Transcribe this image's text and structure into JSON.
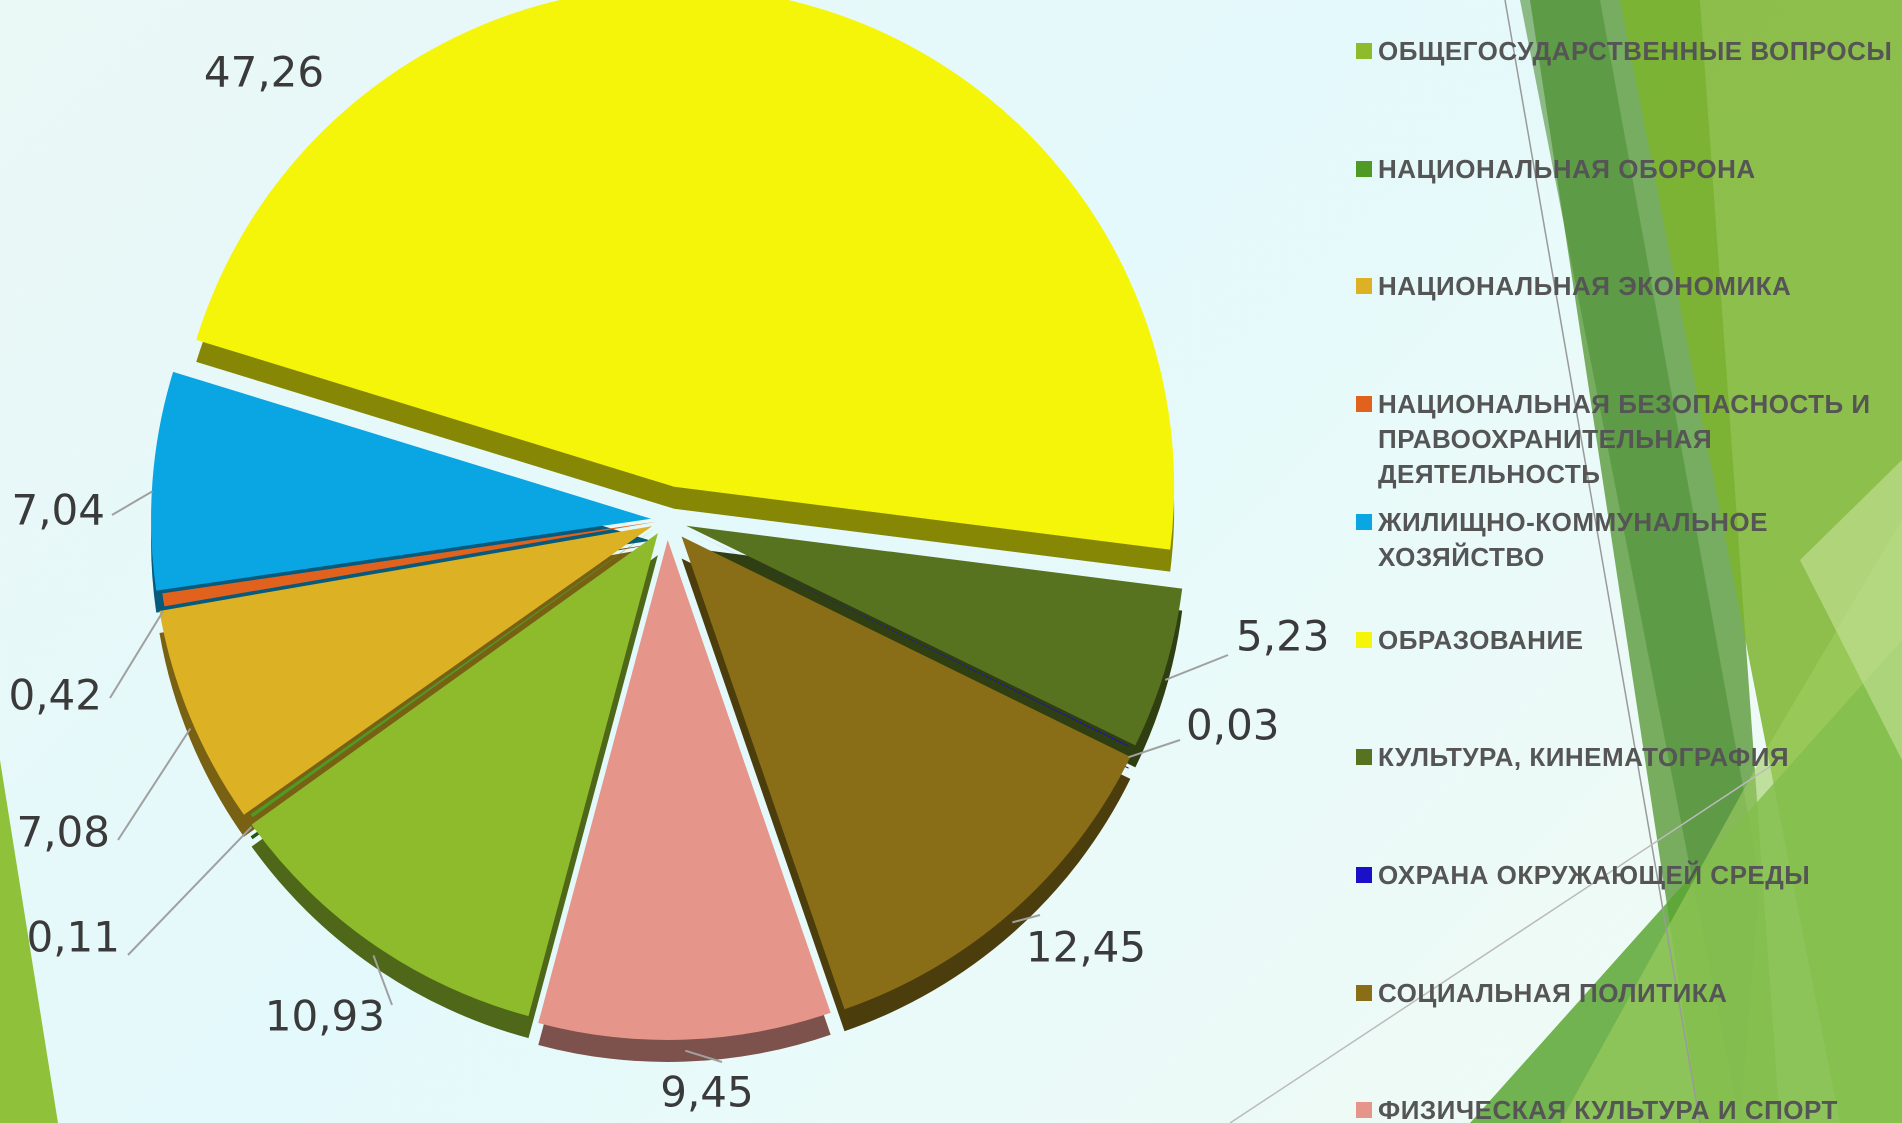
{
  "chart_data": {
    "type": "pie",
    "categories": [
      "ОБЩЕГОСУДАРСТВЕННЫЕ ВОПРОСЫ",
      "НАЦИОНАЛЬНАЯ ОБОРОНА",
      "НАЦИОНАЛЬНАЯ ЭКОНОМИКА",
      "НАЦИОНАЛЬНАЯ БЕЗОПАСНОСТЬ И ПРАВООХРАНИТЕЛЬНАЯ ДЕЯТЕЛЬНОСТЬ",
      "ЖИЛИЩНО-КОММУНАЛЬНОЕ ХОЗЯЙСТВО",
      "ОБРАЗОВАНИЕ",
      "КУЛЬТУРА, КИНЕМАТОГРАФИЯ",
      "ОХРАНА ОКРУЖАЮЩЕЙ СРЕДЫ",
      "СОЦИАЛЬНАЯ ПОЛИТИКА",
      "ФИЗИЧЕСКАЯ КУЛЬТУРА И СПОРТ"
    ],
    "values": [
      10.93,
      0.11,
      7.08,
      0.42,
      7.04,
      47.26,
      5.23,
      0.03,
      12.45,
      9.45
    ],
    "value_labels": [
      "10,93",
      "0,11",
      "7,08",
      "0,42",
      "7,04",
      "47,26",
      "5,23",
      "0,03",
      "12,45",
      "9,45"
    ],
    "colors": [
      "#8dbb2b",
      "#4f9a24",
      "#dcb124",
      "#e0621c",
      "#0aa6e4",
      "#f5f50a",
      "#58731f",
      "#1a10c8",
      "#8a6e17",
      "#e5958a"
    ],
    "legend": "right"
  }
}
